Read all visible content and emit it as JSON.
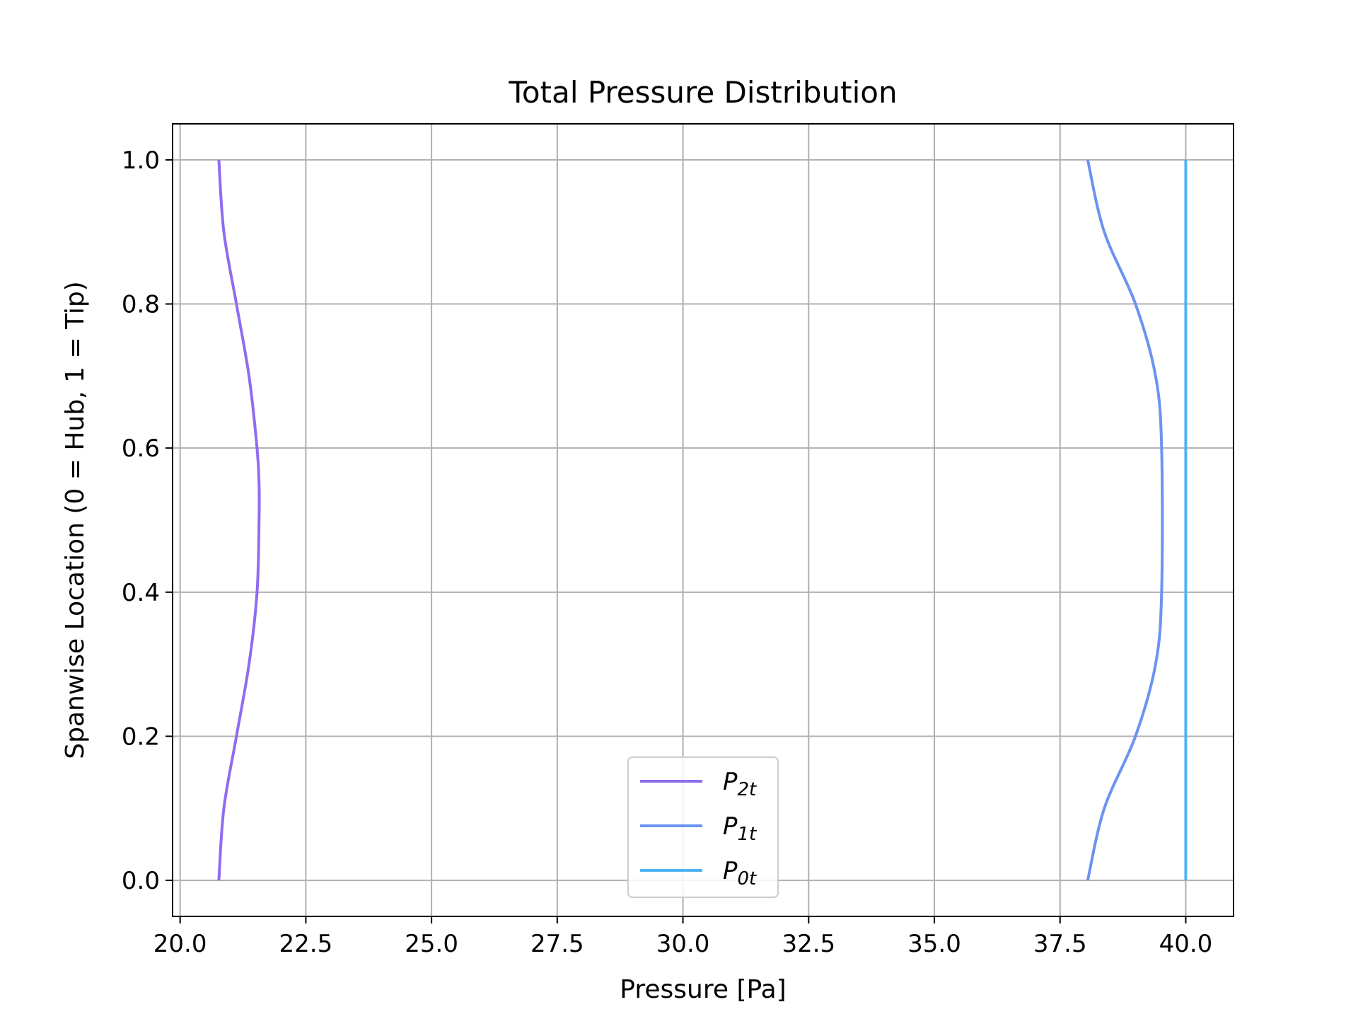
{
  "chart_data": {
    "type": "line",
    "title": "Total Pressure Distribution",
    "xlabel": "Pressure [Pa]",
    "ylabel": "Spanwise Location (0 = Hub, 1 = Tip)",
    "xlim": [
      19.85,
      40.95
    ],
    "ylim": [
      -0.05,
      1.05
    ],
    "xticks": [
      20.0,
      22.5,
      25.0,
      27.5,
      30.0,
      32.5,
      35.0,
      37.5,
      40.0
    ],
    "xtick_labels": [
      "20.0",
      "22.5",
      "25.0",
      "27.5",
      "30.0",
      "32.5",
      "35.0",
      "37.5",
      "40.0"
    ],
    "yticks": [
      0.0,
      0.2,
      0.4,
      0.6,
      0.8,
      1.0
    ],
    "ytick_labels": [
      "0.0",
      "0.2",
      "0.4",
      "0.6",
      "0.8",
      "1.0"
    ],
    "grid": true,
    "legend_position": "bottom-center",
    "series": [
      {
        "name": "P_2t",
        "label_main": "P",
        "label_sub": "2t",
        "color": "#8f6cf0",
        "x": [
          20.77,
          20.87,
          21.12,
          21.37,
          21.53,
          21.57,
          21.57,
          21.53,
          21.37,
          21.12,
          20.87,
          20.77
        ],
        "y": [
          0.0,
          0.1,
          0.2,
          0.3,
          0.4,
          0.5,
          0.55,
          0.6,
          0.7,
          0.8,
          0.9,
          1.0
        ]
      },
      {
        "name": "P_1t",
        "label_main": "P",
        "label_sub": "1t",
        "color": "#6b93f0",
        "x": [
          38.05,
          38.38,
          39.0,
          39.4,
          39.52,
          39.52,
          39.4,
          39.0,
          38.38,
          38.05
        ],
        "y": [
          0.0,
          0.1,
          0.2,
          0.3,
          0.4,
          0.6,
          0.7,
          0.8,
          0.9,
          1.0
        ]
      },
      {
        "name": "P_0t",
        "label_main": "P",
        "label_sub": "0t",
        "color": "#4fb3f0",
        "x": [
          40.0,
          40.0
        ],
        "y": [
          0.0,
          1.0
        ]
      }
    ]
  }
}
